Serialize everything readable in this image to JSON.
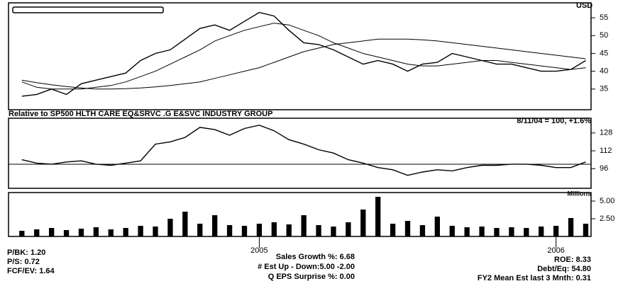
{
  "chart_data": [
    {
      "type": "line",
      "ylabel": "USD",
      "x": [
        2004.2,
        2004.25,
        2004.3,
        2004.35,
        2004.4,
        2004.45,
        2004.5,
        2004.55,
        2004.6,
        2004.65,
        2004.7,
        2004.75,
        2004.8,
        2004.85,
        2004.9,
        2004.95,
        2005.0,
        2005.05,
        2005.1,
        2005.15,
        2005.2,
        2005.25,
        2005.3,
        2005.35,
        2005.4,
        2005.45,
        2005.5,
        2005.55,
        2005.6,
        2005.65,
        2005.7,
        2005.75,
        2005.8,
        2005.85,
        2005.9,
        2005.95,
        2006.0,
        2006.05,
        2006.1
      ],
      "xlim": [
        2004.155,
        2006.118
      ],
      "ylim": [
        29.2,
        59.2
      ],
      "yticks": [
        35,
        40,
        45,
        50,
        55
      ],
      "series": [
        {
          "color": "#000000",
          "values": [
            33,
            33.5,
            35,
            33.5,
            36.5,
            37.5,
            38.5,
            39.5,
            43,
            45,
            46,
            49,
            52,
            53,
            51.5,
            54,
            56.5,
            55.5,
            51.5,
            48,
            47.5,
            46,
            44,
            42,
            43,
            42,
            40,
            42,
            42.5,
            45,
            44,
            43,
            42,
            42,
            41,
            40,
            40,
            40.5,
            43
          ]
        },
        {
          "color": "#000000",
          "values": [
            37,
            35.5,
            35,
            35,
            35,
            35.5,
            36,
            37,
            38.5,
            40,
            42,
            44,
            46,
            48.5,
            50,
            51.5,
            52.5,
            53.5,
            53,
            51.5,
            50,
            48,
            46.5,
            45,
            44,
            43,
            42,
            41.5,
            41.5,
            42,
            42.5,
            43,
            43,
            42.5,
            42,
            41.5,
            41,
            40.5,
            41
          ]
        },
        {
          "color": "#000000",
          "values": [
            37.5,
            36.8,
            36.2,
            35.7,
            35.3,
            35,
            35,
            35.1,
            35.3,
            35.6,
            36,
            36.5,
            37,
            38,
            39,
            40,
            41,
            42.5,
            44,
            45.5,
            46.5,
            47.5,
            48,
            48.5,
            49,
            49,
            49,
            48.8,
            48.5,
            48,
            47.5,
            47,
            46.5,
            46,
            45.5,
            45,
            44.5,
            44,
            43.5
          ]
        }
      ]
    },
    {
      "type": "line",
      "title": "Relative to SP500 HLTH CARE EQ&SRVC .G E&SVC INDUSTRY GROUP",
      "annotation": "8/11/04 = 100, +1.6%",
      "reference": 100,
      "x": [
        2004.2,
        2004.25,
        2004.3,
        2004.35,
        2004.4,
        2004.45,
        2004.5,
        2004.55,
        2004.6,
        2004.65,
        2004.7,
        2004.75,
        2004.8,
        2004.85,
        2004.9,
        2004.95,
        2005.0,
        2005.05,
        2005.1,
        2005.15,
        2005.2,
        2005.25,
        2005.3,
        2005.35,
        2005.4,
        2005.45,
        2005.5,
        2005.55,
        2005.6,
        2005.65,
        2005.7,
        2005.75,
        2005.8,
        2005.85,
        2005.9,
        2005.95,
        2006.0,
        2006.05,
        2006.1
      ],
      "xlim": [
        2004.155,
        2006.118
      ],
      "ylim": [
        78.4,
        141.2
      ],
      "yticks": [
        96,
        112,
        128
      ],
      "series": [
        {
          "color": "#000000",
          "values": [
            104,
            101,
            100,
            102,
            103,
            100,
            99,
            101,
            103,
            118,
            120,
            124,
            133,
            131,
            126,
            132,
            135,
            130,
            122,
            118,
            113,
            110,
            104,
            101,
            97,
            95,
            90,
            93,
            95,
            94,
            97,
            99,
            99,
            100,
            100,
            99,
            97,
            97,
            102
          ]
        }
      ]
    },
    {
      "type": "bar",
      "ylabel": "Millions",
      "x": [
        2004.2,
        2004.25,
        2004.3,
        2004.35,
        2004.4,
        2004.45,
        2004.5,
        2004.55,
        2004.6,
        2004.65,
        2004.7,
        2004.75,
        2004.8,
        2004.85,
        2004.9,
        2004.95,
        2005.0,
        2005.05,
        2005.1,
        2005.15,
        2005.2,
        2005.25,
        2005.3,
        2005.35,
        2005.4,
        2005.45,
        2005.5,
        2005.55,
        2005.6,
        2005.65,
        2005.7,
        2005.75,
        2005.8,
        2005.85,
        2005.9,
        2005.95,
        2006.0,
        2006.05,
        2006.1
      ],
      "xlim": [
        2004.155,
        2006.118
      ],
      "xticks": [
        2005,
        2006
      ],
      "ylim": [
        0,
        6.2
      ],
      "yticks": [
        {
          "value": 2.5,
          "label": "2.50"
        },
        {
          "value": 5,
          "label": "5.00"
        }
      ],
      "color": "#000000",
      "values": [
        0.8,
        1.0,
        1.2,
        0.9,
        1.1,
        1.3,
        1.0,
        1.2,
        1.5,
        1.4,
        2.5,
        3.5,
        1.8,
        3.0,
        1.6,
        1.5,
        1.8,
        2.0,
        1.7,
        3.0,
        1.6,
        1.4,
        2.0,
        3.8,
        5.6,
        1.8,
        2.2,
        1.6,
        2.8,
        1.5,
        1.3,
        1.4,
        1.2,
        1.3,
        1.2,
        1.4,
        1.5,
        2.6,
        1.8
      ]
    }
  ],
  "stats": {
    "left": [
      "P/BK: 1.20",
      "P/S: 0.72",
      "FCF/EV: 1.64"
    ],
    "center": [
      "Sales Growth %: 6.68",
      "# Est Up - Down:5.00 -2.00",
      "Q EPS Surprise %: 0.00"
    ],
    "right": [
      "ROE: 8.33",
      "Debt/Eq: 54.80",
      "FY2 Mean Est last 3 Mnth: 0.31"
    ]
  }
}
